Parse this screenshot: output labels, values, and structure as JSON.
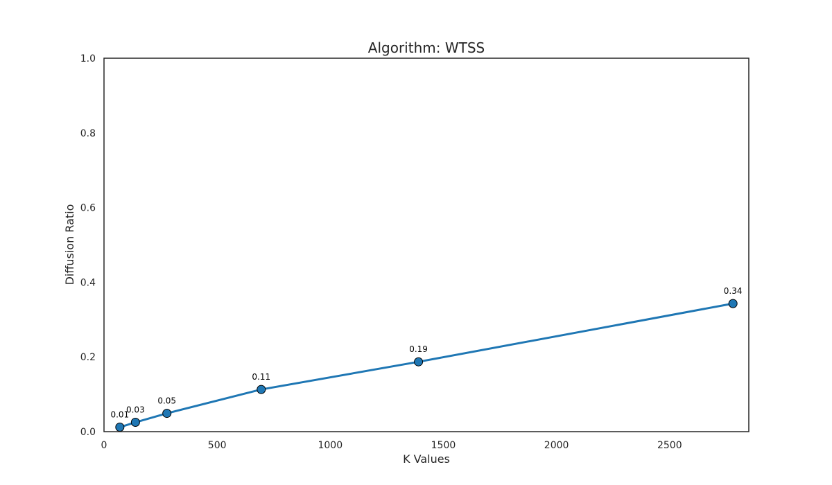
{
  "chart_data": {
    "type": "line",
    "title": "Algorithm: WTSS",
    "xlabel": "K Values",
    "ylabel": "Diffusion Ratio",
    "xlim": [
      0,
      2850
    ],
    "ylim": [
      0,
      1.0
    ],
    "xticks": [
      0,
      500,
      1000,
      1500,
      2000,
      2500
    ],
    "xtick_labels": [
      "0",
      "500",
      "1000",
      "1500",
      "2000",
      "2500"
    ],
    "yticks": [
      0,
      0.2,
      0.4,
      0.6,
      0.8,
      1.0
    ],
    "ytick_labels": [
      "0.0",
      "0.2",
      "0.4",
      "0.6",
      "0.8",
      "1.0"
    ],
    "grid": false,
    "series": [
      {
        "color": "#1f77b4",
        "x": [
          70,
          139,
          278,
          695,
          1390,
          2780
        ],
        "y": [
          0.012,
          0.025,
          0.049,
          0.113,
          0.187,
          0.343
        ],
        "labels": [
          "0.01",
          "0.03",
          "0.05",
          "0.11",
          "0.19",
          "0.34"
        ]
      }
    ]
  }
}
